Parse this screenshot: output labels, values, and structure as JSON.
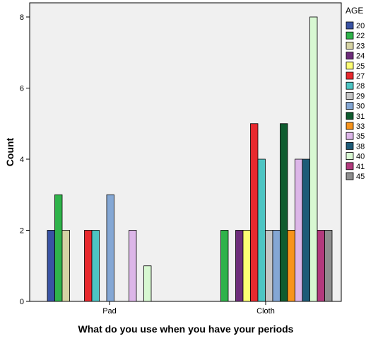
{
  "chart_data": {
    "type": "bar",
    "xlabel": "What do you use when you have your periods",
    "ylabel": "Count",
    "ylim": [
      0,
      8
    ],
    "yticks": [
      "0",
      "2",
      "4",
      "6",
      "8"
    ],
    "grid": false,
    "legend_title": "AGE",
    "legend_position": "right",
    "categories": [
      "Pad",
      "Cloth"
    ],
    "series": [
      {
        "name": "20",
        "color": "#3953a4",
        "values": [
          2,
          0
        ]
      },
      {
        "name": "22",
        "color": "#2fb34a",
        "values": [
          3,
          2
        ]
      },
      {
        "name": "23",
        "color": "#d6d3a4",
        "values": [
          2,
          0
        ]
      },
      {
        "name": "24",
        "color": "#6d2c7a",
        "values": [
          0,
          2
        ]
      },
      {
        "name": "25",
        "color": "#fdfd73",
        "values": [
          0,
          2
        ]
      },
      {
        "name": "27",
        "color": "#e8292e",
        "values": [
          2,
          5
        ]
      },
      {
        "name": "28",
        "color": "#4dc5c3",
        "values": [
          2,
          4
        ]
      },
      {
        "name": "29",
        "color": "#c6c6c6",
        "values": [
          0,
          2
        ]
      },
      {
        "name": "30",
        "color": "#84a7d4",
        "values": [
          3,
          2
        ]
      },
      {
        "name": "31",
        "color": "#0f5c2f",
        "values": [
          0,
          5
        ]
      },
      {
        "name": "33",
        "color": "#f7941d",
        "values": [
          0,
          2
        ]
      },
      {
        "name": "35",
        "color": "#dcb6e8",
        "values": [
          2,
          4
        ]
      },
      {
        "name": "38",
        "color": "#1e5b78",
        "values": [
          0,
          4
        ]
      },
      {
        "name": "40",
        "color": "#d8f8d2",
        "values": [
          1,
          8
        ]
      },
      {
        "name": "41",
        "color": "#b23a7d",
        "values": [
          0,
          2
        ]
      },
      {
        "name": "45",
        "color": "#8e8e8e",
        "values": [
          0,
          2
        ]
      }
    ]
  }
}
